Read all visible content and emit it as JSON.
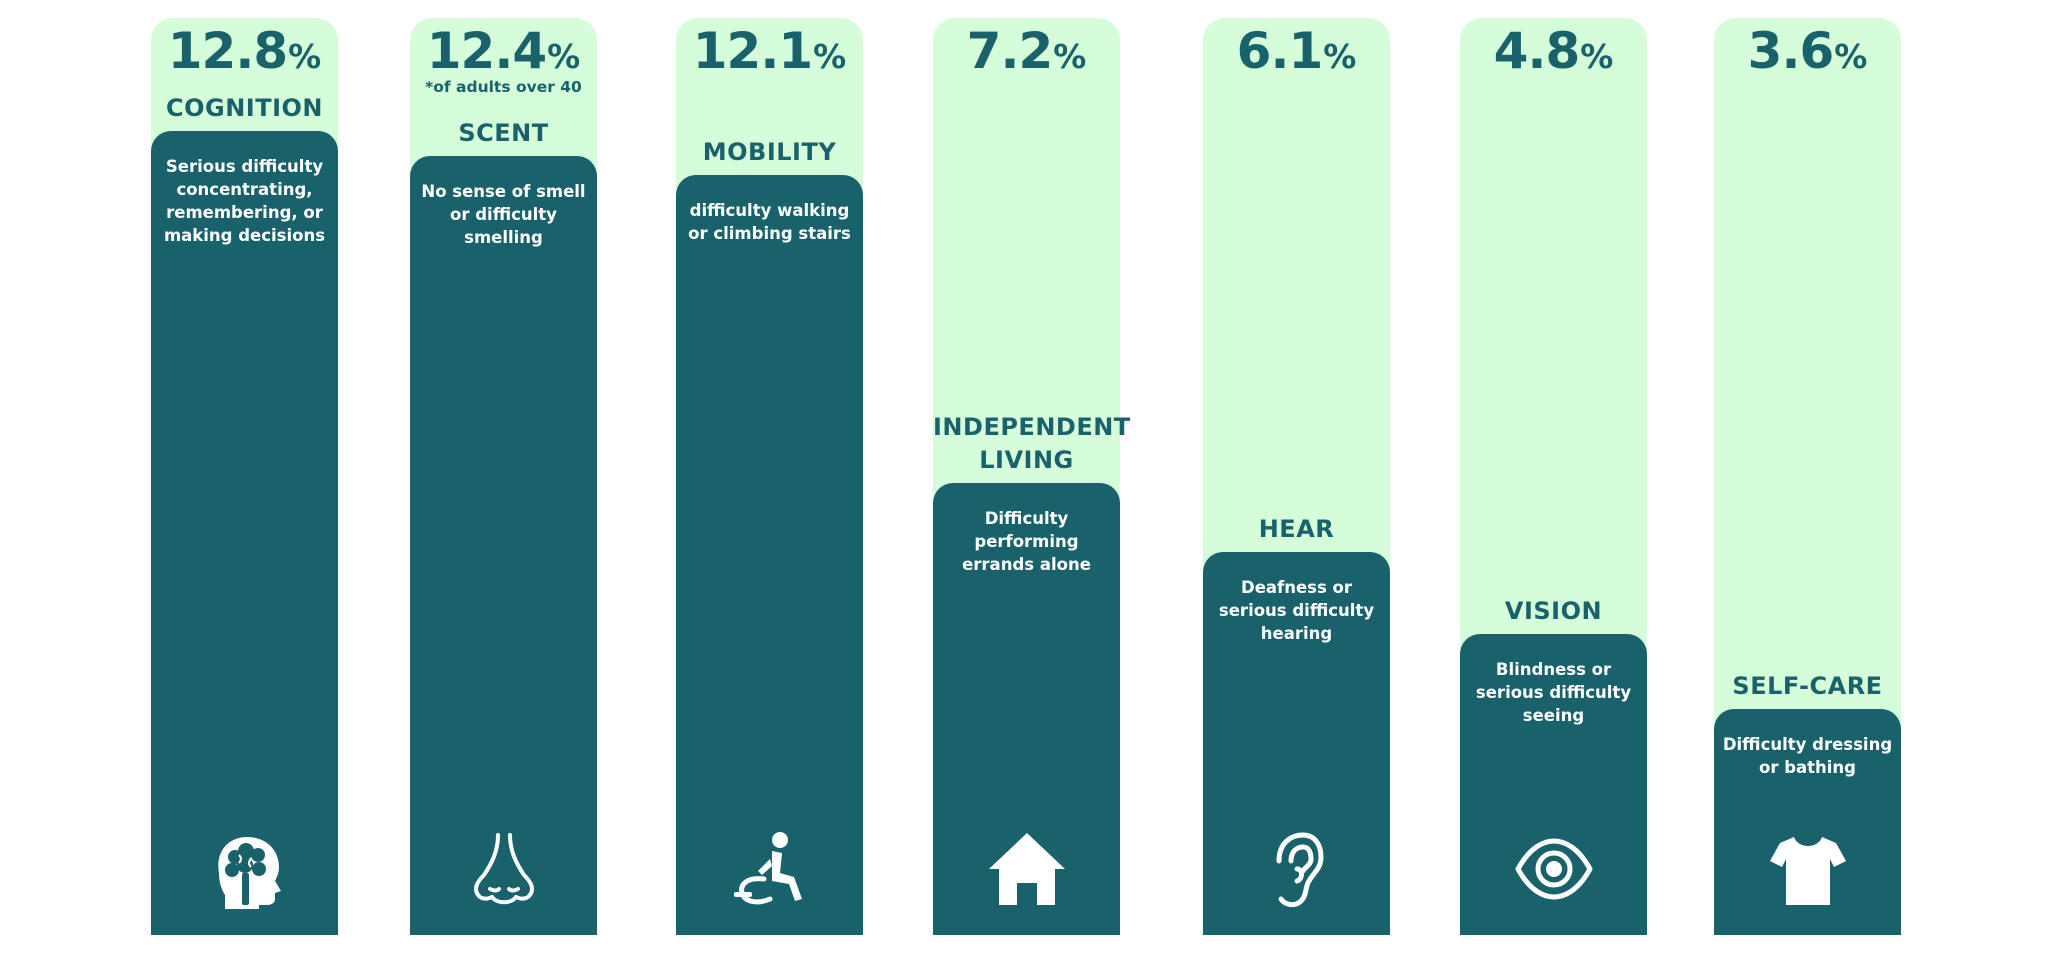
{
  "chart_data": {
    "type": "bar",
    "title": "",
    "xlabel": "",
    "ylabel": "",
    "unit": "%",
    "ylim": [
      0,
      15
    ],
    "categories": [
      "COGNITION",
      "SCENT",
      "MOBILITY",
      "INDEPENDENT LIVING",
      "HEAR",
      "VISION",
      "SELF-CARE"
    ],
    "values": [
      12.8,
      12.4,
      12.1,
      7.2,
      6.1,
      4.8,
      3.6
    ],
    "items": [
      {
        "category": "COGNITION",
        "value": 12.8,
        "value_label": "12.8",
        "unit": "%",
        "footnote": "",
        "description": "Serious difficulty concentrating, remembering, or making decisions",
        "icon": "brain-head-icon"
      },
      {
        "category": "SCENT",
        "value": 12.4,
        "value_label": "12.4",
        "unit": "%",
        "footnote": "*of adults over 40",
        "description": "No sense of smell or difficulty smelling",
        "icon": "nose-icon"
      },
      {
        "category": "MOBILITY",
        "value": 12.1,
        "value_label": "12.1",
        "unit": "%",
        "footnote": "",
        "description": "difficulty walking or climbing stairs",
        "icon": "wheelchair-icon"
      },
      {
        "category": "INDEPENDENT LIVING",
        "value": 7.2,
        "value_label": "7.2",
        "unit": "%",
        "footnote": "",
        "description": "Difficulty performing errands alone",
        "icon": "house-icon"
      },
      {
        "category": "HEAR",
        "value": 6.1,
        "value_label": "6.1",
        "unit": "%",
        "footnote": "",
        "description": "Deafness or serious difficulty hearing",
        "icon": "ear-icon"
      },
      {
        "category": "VISION",
        "value": 4.8,
        "value_label": "4.8",
        "unit": "%",
        "footnote": "",
        "description": "Blindness or serious difficulty seeing",
        "icon": "eye-icon"
      },
      {
        "category": "SELF-CARE",
        "value": 3.6,
        "value_label": "3.6",
        "unit": "%",
        "footnote": "",
        "description": "Difficulty dressing or bathing",
        "icon": "tshirt-icon"
      }
    ]
  },
  "colors": {
    "bar": "#1a626b",
    "track": "#d6fdda",
    "text_dark": "#1a626b",
    "text_light": "#ffffff",
    "background": "#ffffff"
  }
}
